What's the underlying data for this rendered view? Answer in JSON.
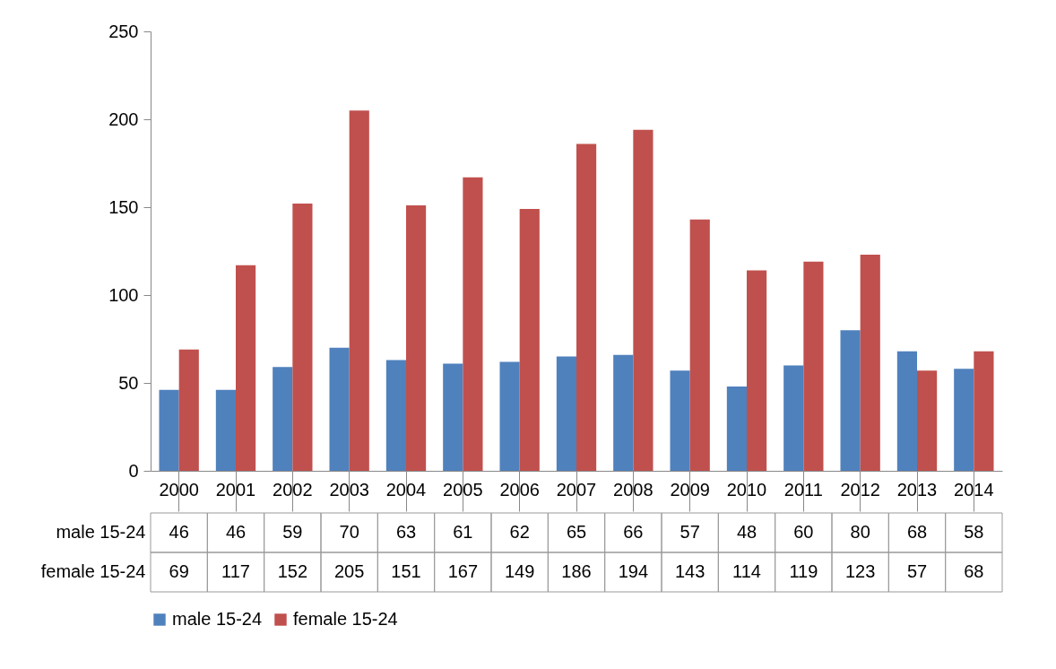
{
  "chart_data": {
    "type": "bar",
    "categories": [
      "2000",
      "2001",
      "2002",
      "2003",
      "2004",
      "2005",
      "2006",
      "2007",
      "2008",
      "2009",
      "2010",
      "2011",
      "2012",
      "2013",
      "2014"
    ],
    "series": [
      {
        "name": "male 15-24",
        "color": "#4f81bd",
        "values": [
          46,
          46,
          59,
          70,
          63,
          61,
          62,
          65,
          66,
          57,
          48,
          60,
          80,
          68,
          58
        ]
      },
      {
        "name": "female 15-24",
        "color": "#c0504d",
        "values": [
          69,
          117,
          152,
          205,
          151,
          167,
          149,
          186,
          194,
          143,
          114,
          119,
          123,
          57,
          68
        ]
      }
    ],
    "ylim": [
      0,
      250
    ],
    "yticks": [
      0,
      50,
      100,
      150,
      200,
      250
    ],
    "legend": "bottom",
    "data_labels": true
  }
}
